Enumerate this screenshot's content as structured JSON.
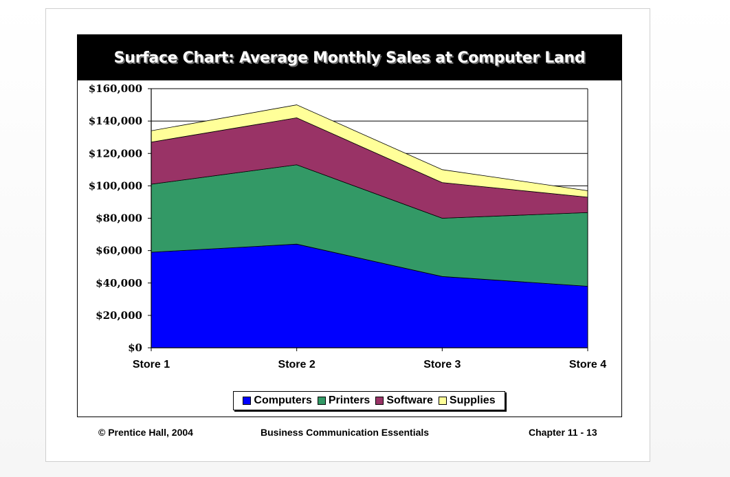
{
  "chart_data": {
    "type": "area",
    "stacked": true,
    "title": "Surface Chart: Average Monthly Sales at Computer Land",
    "categories": [
      "Store 1",
      "Store 2",
      "Store 3",
      "Store 4"
    ],
    "series": [
      {
        "name": "Computers",
        "color": "#0000ff",
        "values": [
          59000,
          64000,
          44000,
          38000
        ]
      },
      {
        "name": "Printers",
        "color": "#339966",
        "values": [
          42000,
          49000,
          36000,
          45500
        ]
      },
      {
        "name": "Software",
        "color": "#993366",
        "values": [
          26000,
          29000,
          22000,
          9500
        ]
      },
      {
        "name": "Supplies",
        "color": "#ffff99",
        "values": [
          7000,
          8000,
          8000,
          4000
        ]
      }
    ],
    "ylim": [
      0,
      160000
    ],
    "yticks": [
      0,
      20000,
      40000,
      60000,
      80000,
      100000,
      120000,
      140000,
      160000
    ],
    "ytick_labels": [
      "$0",
      "$20,000",
      "$40,000",
      "$60,000",
      "$80,000",
      "$100,000",
      "$120,000",
      "$140,000",
      "$160,000"
    ],
    "grid": true,
    "legend_position": "bottom",
    "xlabel": "",
    "ylabel": ""
  },
  "footer": {
    "copyright": "© Prentice Hall, 2004",
    "course": "Business Communication Essentials",
    "chapter": "Chapter 11 - 13"
  }
}
